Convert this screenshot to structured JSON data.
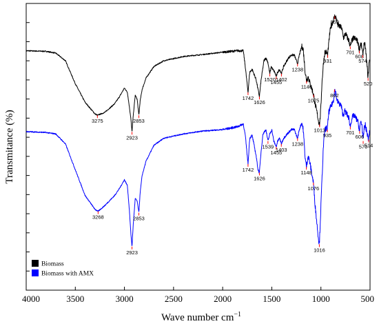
{
  "chart_data": {
    "type": "line",
    "xlabel": "Wave number cm",
    "xlabel_sup": "−1",
    "ylabel": "Transmitance (%)",
    "xlim": [
      4000,
      500
    ],
    "xticks": [
      4000,
      3500,
      3000,
      2500,
      2000,
      1500,
      1000,
      500
    ],
    "ylim": [
      0,
      1
    ],
    "legend_position": "bottom-left",
    "series": [
      {
        "name": "Biomass",
        "color": "#000000",
        "points": [
          [
            4000,
            0.835
          ],
          [
            3800,
            0.833
          ],
          [
            3700,
            0.827
          ],
          [
            3600,
            0.8
          ],
          [
            3500,
            0.72
          ],
          [
            3400,
            0.655
          ],
          [
            3300,
            0.615
          ],
          [
            3275,
            0.61
          ],
          [
            3200,
            0.62
          ],
          [
            3100,
            0.65
          ],
          [
            3050,
            0.675
          ],
          [
            3000,
            0.705
          ],
          [
            2970,
            0.69
          ],
          [
            2950,
            0.64
          ],
          [
            2935,
            0.6
          ],
          [
            2923,
            0.552
          ],
          [
            2910,
            0.61
          ],
          [
            2890,
            0.68
          ],
          [
            2870,
            0.665
          ],
          [
            2853,
            0.61
          ],
          [
            2840,
            0.66
          ],
          [
            2820,
            0.7
          ],
          [
            2780,
            0.74
          ],
          [
            2700,
            0.78
          ],
          [
            2600,
            0.8
          ],
          [
            2400,
            0.815
          ],
          [
            2200,
            0.822
          ],
          [
            2000,
            0.83
          ],
          [
            1850,
            0.835
          ],
          [
            1790,
            0.835
          ],
          [
            1770,
            0.78
          ],
          [
            1742,
            0.69
          ],
          [
            1725,
            0.76
          ],
          [
            1700,
            0.77
          ],
          [
            1660,
            0.735
          ],
          [
            1640,
            0.7
          ],
          [
            1626,
            0.675
          ],
          [
            1610,
            0.73
          ],
          [
            1580,
            0.8
          ],
          [
            1560,
            0.81
          ],
          [
            1540,
            0.795
          ],
          [
            1520,
            0.755
          ],
          [
            1505,
            0.78
          ],
          [
            1490,
            0.77
          ],
          [
            1470,
            0.76
          ],
          [
            1455,
            0.745
          ],
          [
            1440,
            0.76
          ],
          [
            1420,
            0.77
          ],
          [
            1402,
            0.755
          ],
          [
            1380,
            0.78
          ],
          [
            1330,
            0.81
          ],
          [
            1300,
            0.82
          ],
          [
            1270,
            0.82
          ],
          [
            1250,
            0.8
          ],
          [
            1238,
            0.79
          ],
          [
            1220,
            0.82
          ],
          [
            1195,
            0.85
          ],
          [
            1180,
            0.84
          ],
          [
            1160,
            0.76
          ],
          [
            1146,
            0.73
          ],
          [
            1130,
            0.745
          ],
          [
            1110,
            0.72
          ],
          [
            1090,
            0.7
          ],
          [
            1075,
            0.682
          ],
          [
            1060,
            0.65
          ],
          [
            1040,
            0.62
          ],
          [
            1025,
            0.59
          ],
          [
            1013,
            0.578
          ],
          [
            1000,
            0.64
          ],
          [
            990,
            0.72
          ],
          [
            975,
            0.79
          ],
          [
            960,
            0.83
          ],
          [
            945,
            0.83
          ],
          [
            931,
            0.82
          ],
          [
            915,
            0.88
          ],
          [
            900,
            0.92
          ],
          [
            885,
            0.93
          ],
          [
            870,
            0.945
          ],
          [
            859,
            0.955
          ],
          [
            845,
            0.95
          ],
          [
            830,
            0.925
          ],
          [
            810,
            0.92
          ],
          [
            790,
            0.915
          ],
          [
            770,
            0.88
          ],
          [
            750,
            0.895
          ],
          [
            730,
            0.88
          ],
          [
            715,
            0.87
          ],
          [
            701,
            0.85
          ],
          [
            685,
            0.87
          ],
          [
            665,
            0.88
          ],
          [
            645,
            0.875
          ],
          [
            630,
            0.87
          ],
          [
            620,
            0.86
          ],
          [
            608,
            0.835
          ],
          [
            598,
            0.86
          ],
          [
            585,
            0.85
          ],
          [
            574,
            0.82
          ],
          [
            560,
            0.86
          ],
          [
            548,
            0.85
          ],
          [
            535,
            0.8
          ],
          [
            525,
            0.76
          ],
          [
            520,
            0.74
          ],
          [
            512,
            0.79
          ],
          [
            505,
            0.8
          ]
        ],
        "peaks": [
          {
            "x": 3275,
            "label": "3275"
          },
          {
            "x": 2923,
            "label": "2923"
          },
          {
            "x": 2853,
            "label": "2853"
          },
          {
            "x": 1742,
            "label": "1742"
          },
          {
            "x": 1626,
            "label": "1626"
          },
          {
            "x": 1520,
            "label": "1520"
          },
          {
            "x": 1455,
            "label": "1455"
          },
          {
            "x": 1402,
            "label": "1402"
          },
          {
            "x": 1238,
            "label": "1238"
          },
          {
            "x": 1146,
            "label": "1146"
          },
          {
            "x": 1075,
            "label": "1075"
          },
          {
            "x": 1013,
            "label": "1013"
          },
          {
            "x": 931,
            "label": "931"
          },
          {
            "x": 859,
            "label": "859"
          },
          {
            "x": 701,
            "label": "701"
          },
          {
            "x": 608,
            "label": "608"
          },
          {
            "x": 574,
            "label": "574"
          },
          {
            "x": 520,
            "label": "520"
          }
        ]
      },
      {
        "name": "Biomass with AMX",
        "color": "#0000ff",
        "points": [
          [
            4000,
            0.553
          ],
          [
            3800,
            0.55
          ],
          [
            3700,
            0.545
          ],
          [
            3600,
            0.51
          ],
          [
            3500,
            0.42
          ],
          [
            3400,
            0.33
          ],
          [
            3300,
            0.282
          ],
          [
            3268,
            0.275
          ],
          [
            3200,
            0.295
          ],
          [
            3100,
            0.33
          ],
          [
            3050,
            0.355
          ],
          [
            3000,
            0.385
          ],
          [
            2970,
            0.365
          ],
          [
            2950,
            0.28
          ],
          [
            2935,
            0.2
          ],
          [
            2923,
            0.152
          ],
          [
            2910,
            0.23
          ],
          [
            2890,
            0.32
          ],
          [
            2870,
            0.31
          ],
          [
            2853,
            0.27
          ],
          [
            2840,
            0.34
          ],
          [
            2820,
            0.4
          ],
          [
            2780,
            0.45
          ],
          [
            2700,
            0.505
          ],
          [
            2600,
            0.53
          ],
          [
            2400,
            0.545
          ],
          [
            2200,
            0.555
          ],
          [
            2000,
            0.56
          ],
          [
            1850,
            0.57
          ],
          [
            1790,
            0.58
          ],
          [
            1770,
            0.54
          ],
          [
            1742,
            0.44
          ],
          [
            1725,
            0.53
          ],
          [
            1700,
            0.54
          ],
          [
            1660,
            0.47
          ],
          [
            1640,
            0.42
          ],
          [
            1626,
            0.41
          ],
          [
            1610,
            0.48
          ],
          [
            1590,
            0.545
          ],
          [
            1560,
            0.56
          ],
          [
            1539,
            0.52
          ],
          [
            1520,
            0.545
          ],
          [
            1500,
            0.56
          ],
          [
            1480,
            0.52
          ],
          [
            1455,
            0.5
          ],
          [
            1440,
            0.52
          ],
          [
            1420,
            0.53
          ],
          [
            1403,
            0.51
          ],
          [
            1380,
            0.53
          ],
          [
            1330,
            0.55
          ],
          [
            1300,
            0.56
          ],
          [
            1270,
            0.56
          ],
          [
            1250,
            0.54
          ],
          [
            1238,
            0.53
          ],
          [
            1220,
            0.56
          ],
          [
            1195,
            0.585
          ],
          [
            1180,
            0.56
          ],
          [
            1160,
            0.46
          ],
          [
            1148,
            0.43
          ],
          [
            1130,
            0.47
          ],
          [
            1110,
            0.44
          ],
          [
            1090,
            0.4
          ],
          [
            1076,
            0.375
          ],
          [
            1060,
            0.3
          ],
          [
            1040,
            0.23
          ],
          [
            1025,
            0.18
          ],
          [
            1016,
            0.16
          ],
          [
            1005,
            0.25
          ],
          [
            990,
            0.38
          ],
          [
            975,
            0.5
          ],
          [
            960,
            0.56
          ],
          [
            945,
            0.565
          ],
          [
            935,
            0.56
          ],
          [
            920,
            0.62
          ],
          [
            900,
            0.64
          ],
          [
            885,
            0.65
          ],
          [
            870,
            0.665
          ],
          [
            862,
            0.7
          ],
          [
            850,
            0.69
          ],
          [
            835,
            0.66
          ],
          [
            815,
            0.65
          ],
          [
            795,
            0.645
          ],
          [
            775,
            0.61
          ],
          [
            755,
            0.625
          ],
          [
            730,
            0.61
          ],
          [
            715,
            0.6
          ],
          [
            701,
            0.57
          ],
          [
            685,
            0.6
          ],
          [
            665,
            0.61
          ],
          [
            645,
            0.6
          ],
          [
            625,
            0.59
          ],
          [
            606,
            0.555
          ],
          [
            595,
            0.59
          ],
          [
            582,
            0.575
          ],
          [
            570,
            0.52
          ],
          [
            560,
            0.565
          ],
          [
            548,
            0.575
          ],
          [
            535,
            0.555
          ],
          [
            525,
            0.54
          ],
          [
            514,
            0.525
          ],
          [
            505,
            0.56
          ]
        ],
        "peaks": [
          {
            "x": 3268,
            "label": "3268"
          },
          {
            "x": 2923,
            "label": "2923"
          },
          {
            "x": 2853,
            "label": "2853"
          },
          {
            "x": 1742,
            "label": "1742"
          },
          {
            "x": 1626,
            "label": "1626"
          },
          {
            "x": 1539,
            "label": "1539"
          },
          {
            "x": 1455,
            "label": "1455"
          },
          {
            "x": 1403,
            "label": "1403"
          },
          {
            "x": 1238,
            "label": "1238"
          },
          {
            "x": 1148,
            "label": "1148"
          },
          {
            "x": 1076,
            "label": "1076"
          },
          {
            "x": 1016,
            "label": "1016"
          },
          {
            "x": 935,
            "label": "935"
          },
          {
            "x": 862,
            "label": "862"
          },
          {
            "x": 701,
            "label": "701"
          },
          {
            "x": 606,
            "label": "606"
          },
          {
            "x": 570,
            "label": "570"
          },
          {
            "x": 514,
            "label": "514"
          }
        ]
      }
    ]
  },
  "legend": [
    {
      "label": "Biomass",
      "color": "#000000"
    },
    {
      "label": "Biomass with AMX",
      "color": "#0000ff"
    }
  ],
  "peak_marker_color": "#ff0000"
}
